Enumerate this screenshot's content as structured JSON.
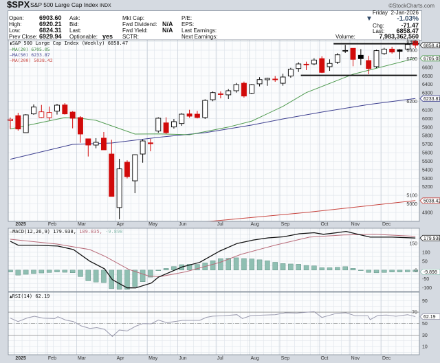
{
  "header": {
    "symbol": "$SPX",
    "name": "S&P 500 Large Cap Index",
    "exchange": "INDX",
    "brand": "©StockCharts.com"
  },
  "quote": {
    "open_label": "Open:",
    "open": "6903.60",
    "high_label": "High:",
    "high": "6920.21",
    "low_label": "Low:",
    "low": "6824.31",
    "prev_close_label": "Prev Close:",
    "prev_close": "6929.94",
    "ask_label": "Ask:",
    "bid_label": "Bid:",
    "last_label": "Last:",
    "optionable_label": "Optionable:",
    "optionable": "yes",
    "mkt_cap_label": "Mkt Cap:",
    "fwd_dividend_label": "Fwd Dividend:",
    "fwd_dividend": "N/A",
    "fwd_yield_label": "Fwd Yield:",
    "fwd_yield": "N/A",
    "sctr_label": "SCTR:",
    "pe_label": "P/E:",
    "eps_label": "EPS:",
    "last_earnings_label": "Last Earnings:",
    "next_earnings_label": "Next Earnings:"
  },
  "summary": {
    "day": "Friday",
    "date": "2-Jan-2026",
    "pct_change": "-1.03%",
    "chg_label": "Chg:",
    "chg": "-71.47",
    "last_label": "Last:",
    "last": "6858.47",
    "volume_label": "Volume:",
    "volume": "7,983,362,560",
    "direction_icon": "down-triangle"
  },
  "chart_data": {
    "type": "candlestick",
    "title": "S&P 500 Large Cap Index (Weekly) 6858.47",
    "legend": {
      "ma20": "MA(20) 6705.05",
      "ma50": "MA(50) 6233.87",
      "ma200": "MA(200) 5038.42"
    },
    "colors": {
      "up": "#000000",
      "down": "#d10a0a",
      "ma20": "#4f9a4f",
      "ma50": "#3d3f8f",
      "ma200": "#c8453f",
      "macd": "#111111",
      "signal": "#b86a78",
      "hist": "#8fbfb2",
      "rsi": "#9a9aae"
    },
    "candles": [
      [
        5975,
        6011,
        5877,
        5992,
        "r"
      ],
      [
        6033,
        6067,
        5858,
        5877,
        "r"
      ],
      [
        5834,
        6050,
        5830,
        6043,
        "k"
      ],
      [
        6054,
        6165,
        6044,
        6134,
        "k"
      ],
      [
        6013,
        6159,
        6006,
        6078,
        "r"
      ],
      [
        6010,
        6140,
        5979,
        6070,
        "r"
      ],
      [
        6086,
        6172,
        6046,
        6156,
        "k"
      ],
      [
        6159,
        6180,
        6046,
        6054,
        "r"
      ],
      [
        6075,
        6086,
        5885,
        6003,
        "r"
      ],
      [
        6011,
        6027,
        5716,
        5818,
        "r"
      ],
      [
        5762,
        5762,
        5555,
        5689,
        "r"
      ],
      [
        5689,
        5770,
        5651,
        5721,
        "k"
      ],
      [
        5770,
        5842,
        5633,
        5633,
        "r"
      ],
      [
        5584,
        5751,
        5088,
        5088,
        "r"
      ],
      [
        4957,
        5528,
        4820,
        5410,
        "k"
      ],
      [
        5488,
        5510,
        5298,
        5319,
        "r"
      ],
      [
        5270,
        5580,
        5125,
        5576,
        "k"
      ],
      [
        5584,
        5754,
        5482,
        5737,
        "k"
      ],
      [
        5715,
        5762,
        5616,
        5705,
        "r"
      ],
      [
        5853,
        6014,
        5834,
        6003,
        "k"
      ],
      [
        5949,
        6014,
        5820,
        5834,
        "r"
      ],
      [
        5901,
        5995,
        5882,
        5963,
        "k"
      ],
      [
        5941,
        6062,
        5915,
        6051,
        "k"
      ],
      [
        6054,
        6102,
        6009,
        6027,
        "r"
      ],
      [
        6051,
        6089,
        6001,
        6011,
        "r"
      ],
      [
        6011,
        6225,
        5995,
        6212,
        "k"
      ],
      [
        6220,
        6317,
        6202,
        6303,
        "k"
      ],
      [
        6283,
        6317,
        6236,
        6289,
        "r"
      ],
      [
        6277,
        6344,
        6228,
        6325,
        "k"
      ],
      [
        6325,
        6416,
        6303,
        6397,
        "k"
      ],
      [
        6413,
        6432,
        6245,
        6263,
        "r"
      ],
      [
        6295,
        6405,
        6285,
        6397,
        "k"
      ],
      [
        6406,
        6484,
        6376,
        6456,
        "k"
      ],
      [
        6454,
        6478,
        6383,
        6470,
        "k"
      ],
      [
        6462,
        6497,
        6430,
        6458,
        "r"
      ],
      [
        6413,
        6524,
        6384,
        6486,
        "k"
      ],
      [
        6497,
        6593,
        6478,
        6577,
        "k"
      ],
      [
        6585,
        6658,
        6545,
        6639,
        "k"
      ],
      [
        6636,
        6666,
        6567,
        6632,
        "r"
      ],
      [
        6639,
        6706,
        6625,
        6685,
        "k"
      ],
      [
        6701,
        6728,
        6532,
        6540,
        "r"
      ],
      [
        6607,
        6693,
        6558,
        6645,
        "k"
      ],
      [
        6660,
        6765,
        6639,
        6746,
        "k"
      ],
      [
        6792,
        6862,
        6768,
        6797,
        "k"
      ],
      [
        6822,
        6822,
        6612,
        6693,
        "r"
      ],
      [
        6741,
        6813,
        6625,
        6701,
        "k"
      ],
      [
        6679,
        6733,
        6518,
        6585,
        "r"
      ],
      [
        6607,
        6805,
        6590,
        6795,
        "k"
      ],
      [
        6760,
        6827,
        6746,
        6813,
        "k"
      ],
      [
        6813,
        6840,
        6760,
        6778,
        "r"
      ],
      [
        6805,
        6813,
        6693,
        6786,
        "k"
      ],
      [
        6813,
        6890,
        6800,
        6867,
        "k"
      ],
      [
        6903.6,
        6920.21,
        6824.31,
        6858.47,
        "r"
      ]
    ],
    "ma20": [
      [
        0,
        5877
      ],
      [
        7,
        6011
      ],
      [
        9,
        6003
      ],
      [
        11,
        5979
      ],
      [
        16,
        5818
      ],
      [
        19,
        5820
      ],
      [
        23,
        5810
      ],
      [
        28,
        5900
      ],
      [
        31,
        5970
      ],
      [
        35,
        6142
      ],
      [
        38,
        6303
      ],
      [
        44,
        6518
      ],
      [
        52,
        6705.05
      ]
    ],
    "ma50": [
      [
        0,
        5523
      ],
      [
        8,
        5697
      ],
      [
        13,
        5713
      ],
      [
        19,
        5780
      ],
      [
        25,
        5834
      ],
      [
        31,
        5923
      ],
      [
        35,
        5995
      ],
      [
        40,
        6075
      ],
      [
        46,
        6164
      ],
      [
        52,
        6233.87
      ]
    ],
    "ma200": [
      [
        25,
        4790
      ],
      [
        38,
        4900
      ],
      [
        52,
        5038.42
      ]
    ],
    "levels": [
      {
        "price": 6875,
        "from": 41.5,
        "to": 52.5
      },
      {
        "price": 6505,
        "from": 37.3,
        "to": 52.2
      }
    ],
    "price_axis": {
      "min": 4800,
      "max": 6920,
      "ticks": [
        "4900",
        "5000",
        "5100",
        "5200",
        "5300",
        "5400",
        "5500",
        "5600",
        "5700",
        "5800",
        "5900",
        "6000",
        "6100",
        "6200",
        "6300",
        "6400",
        "6500",
        "6600",
        "6700",
        "6800",
        "6900"
      ]
    },
    "tags": {
      "last": "6858.47",
      "ma20": "6705.05",
      "ma50": "6233.87",
      "ma200": "5038.42"
    },
    "months": [
      [
        "2025",
        1
      ],
      [
        "Feb",
        5.2
      ],
      [
        "Mar",
        9
      ],
      [
        "Apr",
        14
      ],
      [
        "May",
        18.1
      ],
      [
        "Jun",
        22
      ],
      [
        "Jul",
        26.9
      ],
      [
        "Aug",
        31.2
      ],
      [
        "Sep",
        35.1
      ],
      [
        "Oct",
        40.2
      ],
      [
        "Nov",
        44.1
      ],
      [
        "Dec",
        48.1
      ]
    ],
    "macd": {
      "label": "MACD(12,26,9) 179.938, 189.835, -9.898",
      "label_main": "MACD(12,26,9) 179.938,",
      "label_signal": "189.835,",
      "label_hist": "-9.898",
      "line": [
        [
          0,
          162
        ],
        [
          1,
          140
        ],
        [
          3.1,
          140
        ],
        [
          6.1,
          135
        ],
        [
          8.1,
          115
        ],
        [
          10.2,
          50
        ],
        [
          12.1,
          7
        ],
        [
          13.1,
          -54
        ],
        [
          15,
          -100
        ],
        [
          16.1,
          -100
        ],
        [
          18.1,
          -73
        ],
        [
          19,
          -40
        ],
        [
          22.1,
          18
        ],
        [
          24.3,
          43
        ],
        [
          26.9,
          107
        ],
        [
          29.1,
          149
        ],
        [
          31.2,
          169
        ],
        [
          33.1,
          181
        ],
        [
          35.1,
          187
        ],
        [
          37.1,
          204
        ],
        [
          39,
          210
        ],
        [
          40.2,
          201
        ],
        [
          41.9,
          210
        ],
        [
          43.1,
          217
        ],
        [
          45,
          197
        ],
        [
          46.2,
          185
        ],
        [
          49,
          185
        ],
        [
          52,
          179.938
        ]
      ],
      "signal": [
        [
          0,
          173
        ],
        [
          6,
          146
        ],
        [
          10.2,
          115
        ],
        [
          12.2,
          76
        ],
        [
          15.2,
          4
        ],
        [
          17.8,
          -34
        ],
        [
          19.2,
          -37
        ],
        [
          22.5,
          -10
        ],
        [
          26.9,
          43
        ],
        [
          29.6,
          88
        ],
        [
          34,
          140
        ],
        [
          38.4,
          185
        ],
        [
          42.8,
          197
        ],
        [
          46.8,
          201
        ],
        [
          52,
          189.835
        ]
      ],
      "axis": [
        "150",
        "100",
        "50",
        "0",
        "-50",
        "-100"
      ],
      "axis_values": [
        150,
        100,
        50,
        0,
        -50,
        -100
      ],
      "tags": {
        "macd": "179.938",
        "hist": "-9.898"
      }
    },
    "rsi": {
      "label": "RSI(14) 62.19",
      "line": [
        [
          0,
          59.6
        ],
        [
          1,
          53.6
        ],
        [
          2.2,
          60
        ],
        [
          3.1,
          62.8
        ],
        [
          4.2,
          59.6
        ],
        [
          5.7,
          58.8
        ],
        [
          6.1,
          62
        ],
        [
          7.1,
          56.3
        ],
        [
          8.1,
          53.6
        ],
        [
          9.1,
          46
        ],
        [
          10.2,
          41.6
        ],
        [
          11.1,
          43
        ],
        [
          12.1,
          40
        ],
        [
          13.1,
          27.6
        ],
        [
          14,
          38.8
        ],
        [
          15,
          37.2
        ],
        [
          16.1,
          45.4
        ],
        [
          17,
          50
        ],
        [
          18.1,
          49.6
        ],
        [
          19,
          56.3
        ],
        [
          20.1,
          51.6
        ],
        [
          22.1,
          55.6
        ],
        [
          24.3,
          55.6
        ],
        [
          25.2,
          61
        ],
        [
          26,
          63
        ],
        [
          27.4,
          63.7
        ],
        [
          29.1,
          65.6
        ],
        [
          29.8,
          58.9
        ],
        [
          30.9,
          64
        ],
        [
          34,
          65.6
        ],
        [
          35.3,
          68.8
        ],
        [
          36.8,
          68.4
        ],
        [
          39,
          70.9
        ],
        [
          40,
          60.8
        ],
        [
          41.9,
          68
        ],
        [
          43.1,
          68.8
        ],
        [
          44.3,
          63.7
        ],
        [
          45.9,
          63.7
        ],
        [
          46.2,
          56.8
        ],
        [
          47.2,
          64.4
        ],
        [
          48.3,
          65
        ],
        [
          49.5,
          62.8
        ],
        [
          51,
          65.6
        ],
        [
          52,
          62.19
        ]
      ],
      "axis": [
        "90",
        "70",
        "50",
        "30",
        "10"
      ],
      "axis_values": [
        90,
        70,
        50,
        30,
        10
      ],
      "tag": "62.19"
    }
  }
}
